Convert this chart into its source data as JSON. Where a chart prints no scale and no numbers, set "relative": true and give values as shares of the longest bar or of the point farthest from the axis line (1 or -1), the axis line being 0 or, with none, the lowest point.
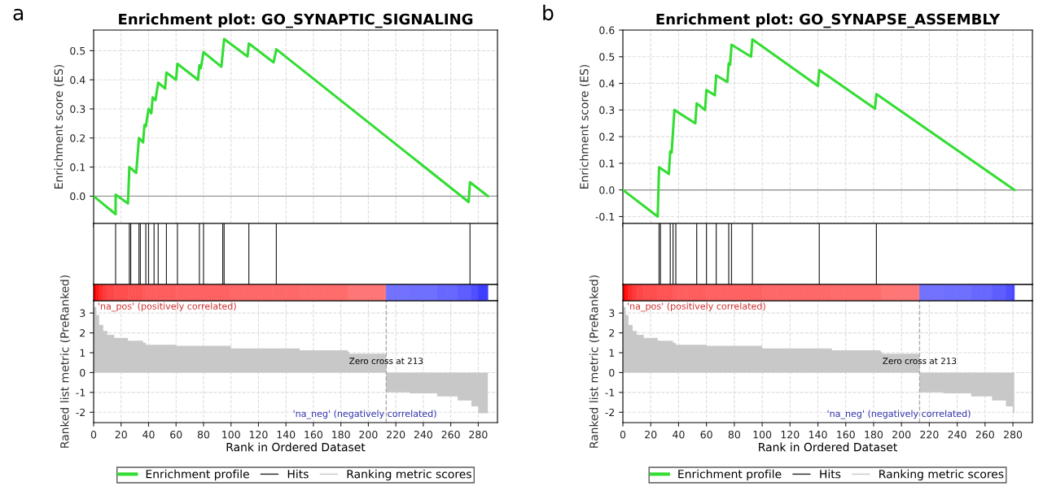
{
  "chart_data": [
    {
      "type": "line",
      "title": "Enrichment plot: GO_SYNAPTIC_SIGNALING",
      "ylabel": "Enrichment score (ES)",
      "annotations": [
        "a"
      ],
      "xlim": [
        0,
        294
      ],
      "ylim": [
        -0.094,
        0.571
      ],
      "xticks": [
        0,
        20,
        40,
        60,
        80,
        100,
        120,
        140,
        160,
        180,
        200,
        220,
        240,
        260,
        280
      ],
      "yticks": [
        {
          "value": 0,
          "label": "0.0"
        },
        {
          "value": 0.1,
          "label": "0.1"
        },
        {
          "value": 0.2,
          "label": "0.2"
        },
        {
          "value": 0.3,
          "label": "0.3"
        },
        {
          "value": 0.4,
          "label": "0.4"
        },
        {
          "value": 0.5,
          "label": "0.5"
        }
      ],
      "tick_labels": "y",
      "grid": true,
      "ref_lines": [
        {
          "axis": "y",
          "value": 0,
          "color": "#999999",
          "line_style": "solid"
        }
      ],
      "series": [
        {
          "name": "Enrichment profile",
          "color": "#33dd33",
          "x": [
            0,
            16,
            16,
            25,
            26,
            31,
            33,
            36,
            37,
            38,
            40,
            42,
            43,
            45,
            47,
            52,
            53,
            60,
            61,
            76,
            77,
            78,
            80,
            93,
            95,
            112,
            113,
            131,
            133,
            273,
            274,
            287
          ],
          "values": [
            0,
            -0.062,
            0.005,
            -0.025,
            0.1,
            0.08,
            0.2,
            0.185,
            0.245,
            0.24,
            0.3,
            0.285,
            0.34,
            0.33,
            0.39,
            0.37,
            0.425,
            0.4,
            0.455,
            0.4,
            0.45,
            0.44,
            0.495,
            0.445,
            0.54,
            0.48,
            0.525,
            0.46,
            0.505,
            -0.02,
            0.048,
            0
          ]
        }
      ]
    },
    {
      "type": "bar",
      "relative": true,
      "xlim": [
        0,
        294
      ],
      "tick_labels": false,
      "series": [
        {
          "name": "Hits",
          "color": "#222222",
          "x": [
            16,
            26,
            27,
            33,
            34,
            38,
            40,
            44,
            47,
            53,
            61,
            77,
            80,
            94,
            95,
            113,
            133,
            274
          ],
          "values": [
            1,
            1,
            1,
            1,
            1,
            1,
            1,
            1,
            1,
            1,
            1,
            1,
            1,
            1,
            1,
            1,
            1,
            1
          ]
        }
      ]
    },
    {
      "type": "area",
      "xlabel": "Rank in Ordered Dataset",
      "ylabel": "Ranked list metric (PreRanked)",
      "annotations": [
        "'na_pos' (positively correlated)",
        "'na_neg' (negatively correlated)"
      ],
      "xlim": [
        0,
        294
      ],
      "ylim": [
        -2.52,
        3.62
      ],
      "xticks": [
        0,
        20,
        40,
        60,
        80,
        100,
        120,
        140,
        160,
        180,
        200,
        220,
        240,
        260,
        280
      ],
      "yticks": [
        -2,
        -1,
        0,
        1,
        2,
        3
      ],
      "grid": true,
      "legend": "bottom",
      "ref_lines": [
        {
          "axis": "x",
          "value": 213,
          "label": "Zero cross at 213",
          "color": "#aaaaaa",
          "line_style": "dashed"
        }
      ],
      "series": [
        {
          "name": "Ranking metric scores",
          "color": "#c8c8c8",
          "x": [
            0,
            2,
            4,
            7,
            10,
            15,
            25,
            36,
            38,
            60,
            100,
            150,
            185,
            186,
            212,
            213,
            230,
            250,
            265,
            275,
            280,
            287
          ],
          "values": [
            3.3,
            2.9,
            2.4,
            2.1,
            1.9,
            1.75,
            1.6,
            1.5,
            1.4,
            1.35,
            1.22,
            1.12,
            1.05,
            0.95,
            0.92,
            -1.0,
            -1.05,
            -1.2,
            -1.4,
            -1.7,
            -2.05,
            -2.2
          ]
        }
      ]
    },
    {
      "type": "line",
      "title": "Enrichment plot: GO_SYNAPSE_ASSEMBLY",
      "ylabel": "Enrichment score (ES)",
      "annotations": [
        "b"
      ],
      "xlim": [
        0,
        294
      ],
      "ylim": [
        -0.126,
        0.6
      ],
      "xticks": [
        0,
        20,
        40,
        60,
        80,
        100,
        120,
        140,
        160,
        180,
        200,
        220,
        240,
        260,
        280
      ],
      "yticks": [
        {
          "value": -0.1,
          "label": "-0.1"
        },
        {
          "value": 0,
          "label": "0.0"
        },
        {
          "value": 0.1,
          "label": "0.1"
        },
        {
          "value": 0.2,
          "label": "0.2"
        },
        {
          "value": 0.3,
          "label": "0.3"
        },
        {
          "value": 0.4,
          "label": "0.4"
        },
        {
          "value": 0.5,
          "label": "0.5"
        },
        {
          "value": 0.6,
          "label": "0.6"
        }
      ],
      "tick_labels": "y",
      "grid": true,
      "ref_lines": [
        {
          "axis": "y",
          "value": 0,
          "color": "#999999",
          "line_style": "solid"
        }
      ],
      "series": [
        {
          "name": "Enrichment profile",
          "color": "#33dd33",
          "x": [
            0,
            25,
            26,
            33,
            34,
            35,
            36,
            37,
            52,
            53,
            59,
            60,
            66,
            67,
            75,
            76,
            77,
            78,
            92,
            93,
            140,
            141,
            181,
            182,
            281
          ],
          "values": [
            0,
            -0.1,
            0.085,
            0.06,
            0.145,
            0.14,
            0.22,
            0.3,
            0.25,
            0.325,
            0.3,
            0.375,
            0.355,
            0.43,
            0.405,
            0.475,
            0.47,
            0.545,
            0.5,
            0.565,
            0.39,
            0.45,
            0.305,
            0.36,
            0
          ]
        }
      ]
    },
    {
      "type": "bar",
      "relative": true,
      "xlim": [
        0,
        294
      ],
      "tick_labels": false,
      "series": [
        {
          "name": "Hits",
          "color": "#222222",
          "x": [
            26,
            27,
            34,
            36,
            38,
            53,
            60,
            67,
            76,
            78,
            93,
            141,
            182
          ],
          "values": [
            1,
            1,
            1,
            1,
            1,
            1,
            1,
            1,
            1,
            1,
            1,
            1,
            1
          ]
        }
      ]
    },
    {
      "type": "area",
      "xlabel": "Rank in Ordered Dataset",
      "ylabel": "Ranked list metric (PreRanked)",
      "annotations": [
        "'na_pos' (positively correlated)",
        "'na_neg' (negatively correlated)"
      ],
      "xlim": [
        0,
        294
      ],
      "ylim": [
        -2.52,
        3.62
      ],
      "xticks": [
        0,
        20,
        40,
        60,
        80,
        100,
        120,
        140,
        160,
        180,
        200,
        220,
        240,
        260,
        280
      ],
      "yticks": [
        -2,
        -1,
        0,
        1,
        2,
        3
      ],
      "grid": true,
      "legend": "bottom",
      "ref_lines": [
        {
          "axis": "x",
          "value": 213,
          "label": "Zero cross at 213",
          "color": "#aaaaaa",
          "line_style": "dashed"
        }
      ],
      "series": [
        {
          "name": "Ranking metric scores",
          "color": "#c8c8c8",
          "x": [
            0,
            2,
            4,
            7,
            10,
            15,
            25,
            36,
            38,
            60,
            100,
            150,
            185,
            186,
            212,
            213,
            230,
            250,
            265,
            275,
            280,
            281
          ],
          "values": [
            3.3,
            2.9,
            2.4,
            2.1,
            1.9,
            1.75,
            1.6,
            1.5,
            1.4,
            1.35,
            1.22,
            1.12,
            1.05,
            0.95,
            0.92,
            -1.0,
            -1.05,
            -1.2,
            -1.4,
            -1.7,
            -2.05,
            -2.2
          ]
        }
      ]
    }
  ]
}
